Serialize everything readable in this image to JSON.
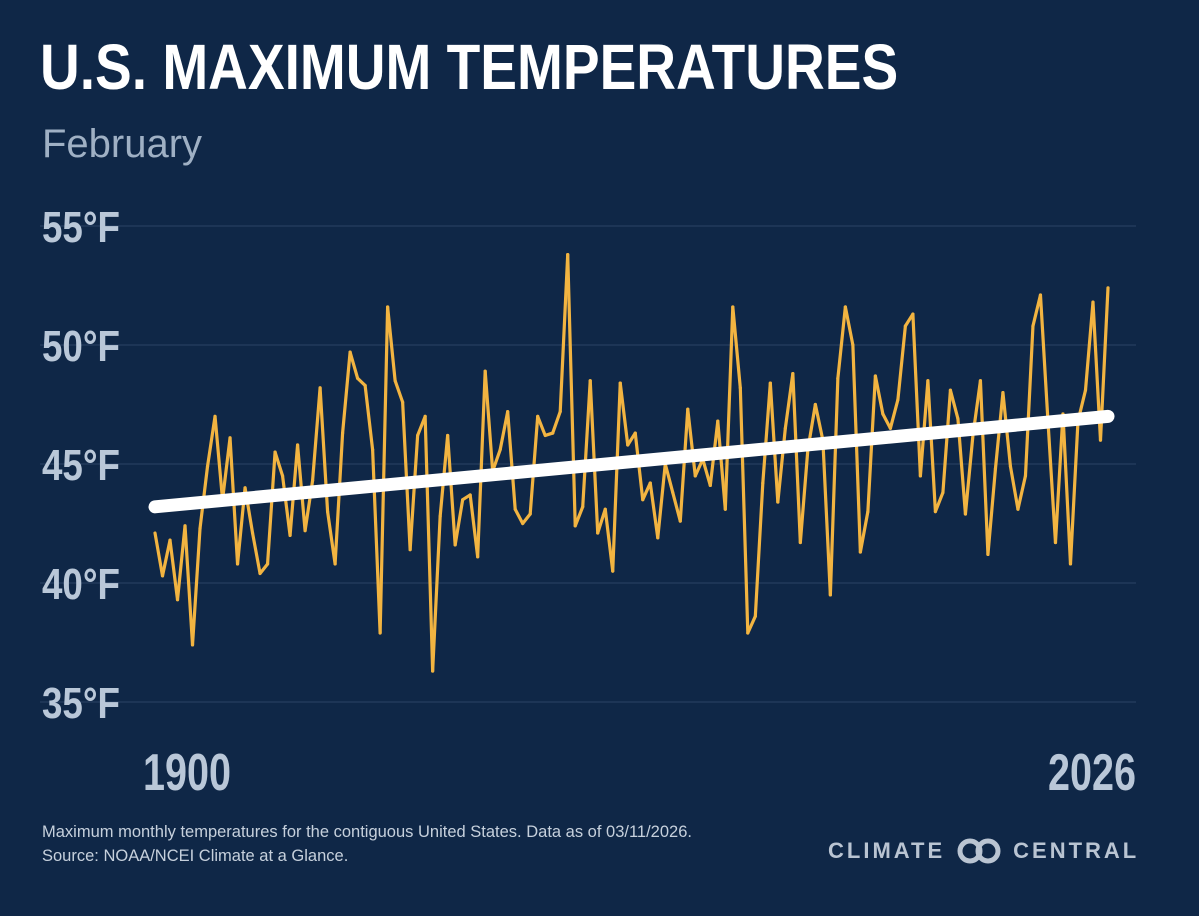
{
  "title": "U.S. MAXIMUM TEMPERATURES",
  "subtitle": "February",
  "footnote_line1": "Maximum monthly temperatures for the contiguous United States. Data as of 03/11/2026.",
  "footnote_line2": "Source: NOAA/NCEI Climate at a Glance.",
  "brand": {
    "left": "CLIMATE",
    "right": "CENTRAL",
    "logo_icon": "linked-rings-icon"
  },
  "colors": {
    "background": "#0f2747",
    "series": "#f2b441",
    "trend": "#ffffff",
    "grid": "#2b4366",
    "axis_text": "#b9c7d8"
  },
  "chart_data": {
    "type": "line",
    "title": "U.S. MAXIMUM TEMPERATURES",
    "subtitle": "February",
    "xlabel": "",
    "ylabel": "",
    "x_start": 1900,
    "x_end": 2026,
    "xlim": [
      1900,
      2026
    ],
    "ylim": [
      35,
      55
    ],
    "x_tick_labels": [
      "1900",
      "2026"
    ],
    "y_ticks": [
      35,
      40,
      45,
      50,
      55
    ],
    "y_tick_labels": [
      "35°F",
      "40°F",
      "45°F",
      "50°F",
      "55°F"
    ],
    "grid": true,
    "legend": "none",
    "series": [
      {
        "name": "February maximum temperature (°F)",
        "values": [
          42.1,
          40.3,
          41.8,
          39.3,
          42.4,
          37.4,
          42.3,
          44.9,
          47.0,
          43.5,
          46.1,
          40.8,
          44.0,
          42.1,
          40.4,
          40.8,
          45.5,
          44.5,
          42.0,
          45.8,
          42.2,
          44.3,
          48.2,
          43.0,
          40.8,
          46.3,
          49.7,
          48.6,
          48.3,
          45.6,
          37.9,
          51.6,
          48.5,
          47.6,
          41.4,
          46.2,
          47.0,
          36.3,
          42.8,
          46.2,
          41.6,
          43.5,
          43.7,
          41.1,
          48.9,
          44.7,
          45.6,
          47.2,
          43.1,
          42.5,
          42.9,
          47.0,
          46.2,
          46.3,
          47.2,
          53.8,
          42.4,
          43.2,
          48.5,
          42.1,
          43.1,
          40.5,
          48.4,
          45.8,
          46.3,
          43.5,
          44.2,
          41.9,
          45.0,
          43.8,
          42.6,
          47.3,
          44.5,
          45.2,
          44.1,
          46.8,
          43.1,
          51.6,
          48.2,
          37.9,
          38.6,
          44.2,
          48.4,
          43.4,
          46.5,
          48.8,
          41.7,
          45.6,
          47.5,
          46.0,
          39.5,
          48.6,
          51.6,
          50.0,
          41.3,
          43.0,
          48.7,
          47.1,
          46.5,
          47.7,
          50.8,
          51.3,
          44.5,
          48.5,
          43.0,
          43.8,
          48.1,
          46.9,
          42.9,
          46.2,
          48.5,
          41.2,
          44.8,
          48.0,
          44.9,
          43.1,
          44.5,
          50.8,
          52.1,
          46.8,
          41.7,
          47.1,
          40.8,
          46.8,
          48.1,
          51.8,
          46.0,
          52.4
        ]
      },
      {
        "name": "Trend",
        "type": "linear-trend",
        "start_value": 43.2,
        "end_value": 47.0
      }
    ]
  }
}
